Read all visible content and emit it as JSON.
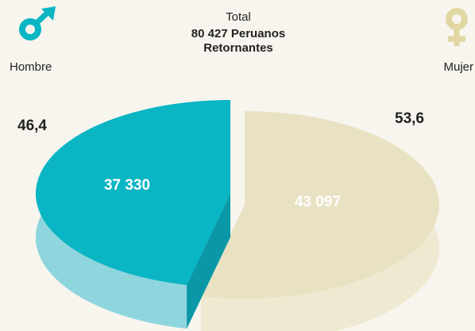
{
  "chart_data": {
    "type": "pie",
    "title": "Total",
    "subtitle": "80 427 Peruanos Retornantes",
    "categories": [
      "Hombre",
      "Mujer"
    ],
    "values": [
      46.4,
      53.6
    ],
    "value_labels": [
      "46,4",
      "53,6"
    ],
    "counts": [
      37330,
      43097
    ],
    "count_labels": [
      "37 330",
      "43 097"
    ],
    "colors": [
      "#0ab5c4",
      "#e8e2c3"
    ]
  }
}
